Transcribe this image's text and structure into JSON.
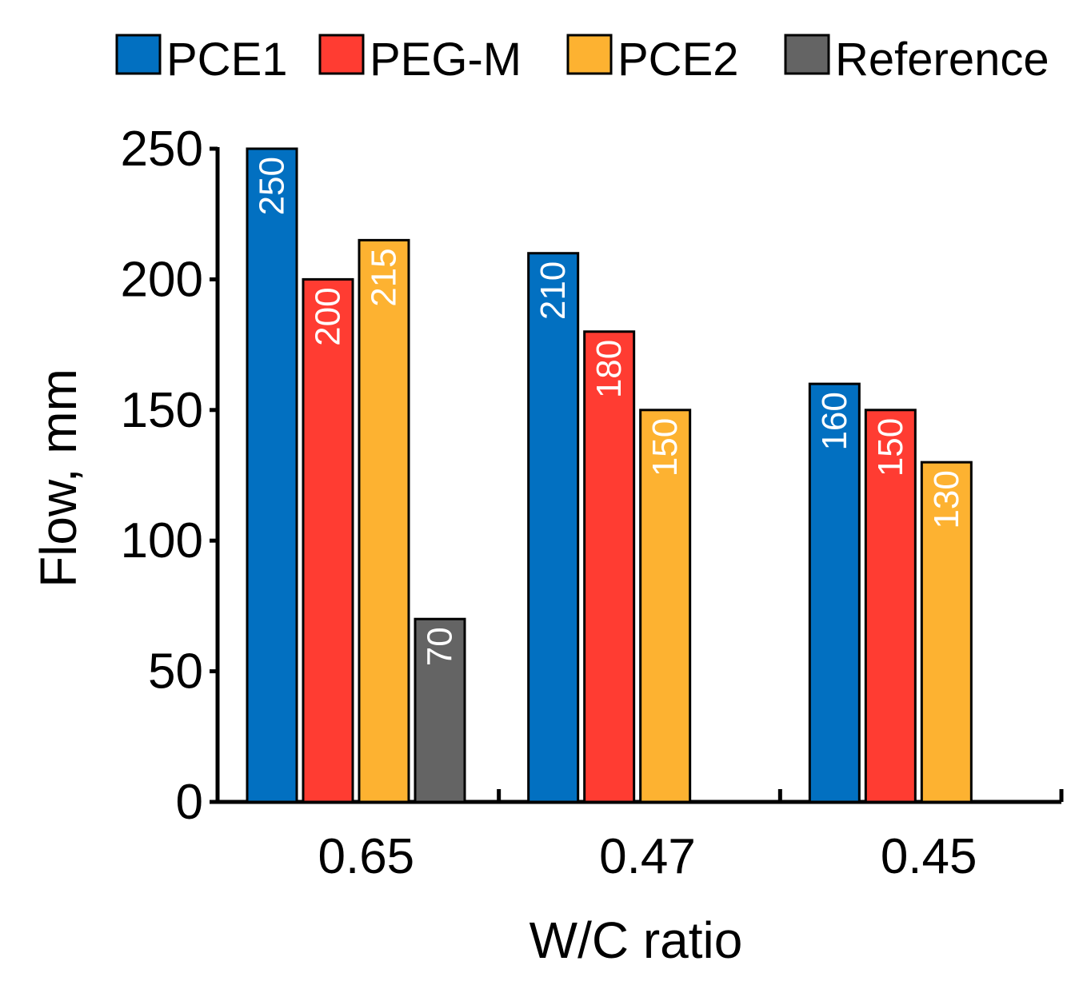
{
  "chart_data": {
    "type": "bar",
    "title": "",
    "xlabel": "W/C ratio",
    "ylabel": "Flow, mm",
    "ylim": [
      0,
      250
    ],
    "yticks": [
      0,
      50,
      100,
      150,
      200,
      250
    ],
    "categories": [
      "0.65",
      "0.47",
      "0.45"
    ],
    "legend_position": "top",
    "series": [
      {
        "name": "PCE1",
        "color": "#0270c1",
        "label_color": "#ffffff",
        "values": [
          250,
          210,
          160
        ]
      },
      {
        "name": "PEG-M",
        "color": "#ff3c32",
        "label_color": "#ffffff",
        "values": [
          200,
          180,
          150
        ]
      },
      {
        "name": "PCE2",
        "color": "#fdb231",
        "label_color": "#ffffff",
        "values": [
          215,
          150,
          130
        ]
      },
      {
        "name": "Reference",
        "color": "#646464",
        "label_color": "#ffffff",
        "values": [
          70,
          null,
          null
        ]
      }
    ]
  }
}
